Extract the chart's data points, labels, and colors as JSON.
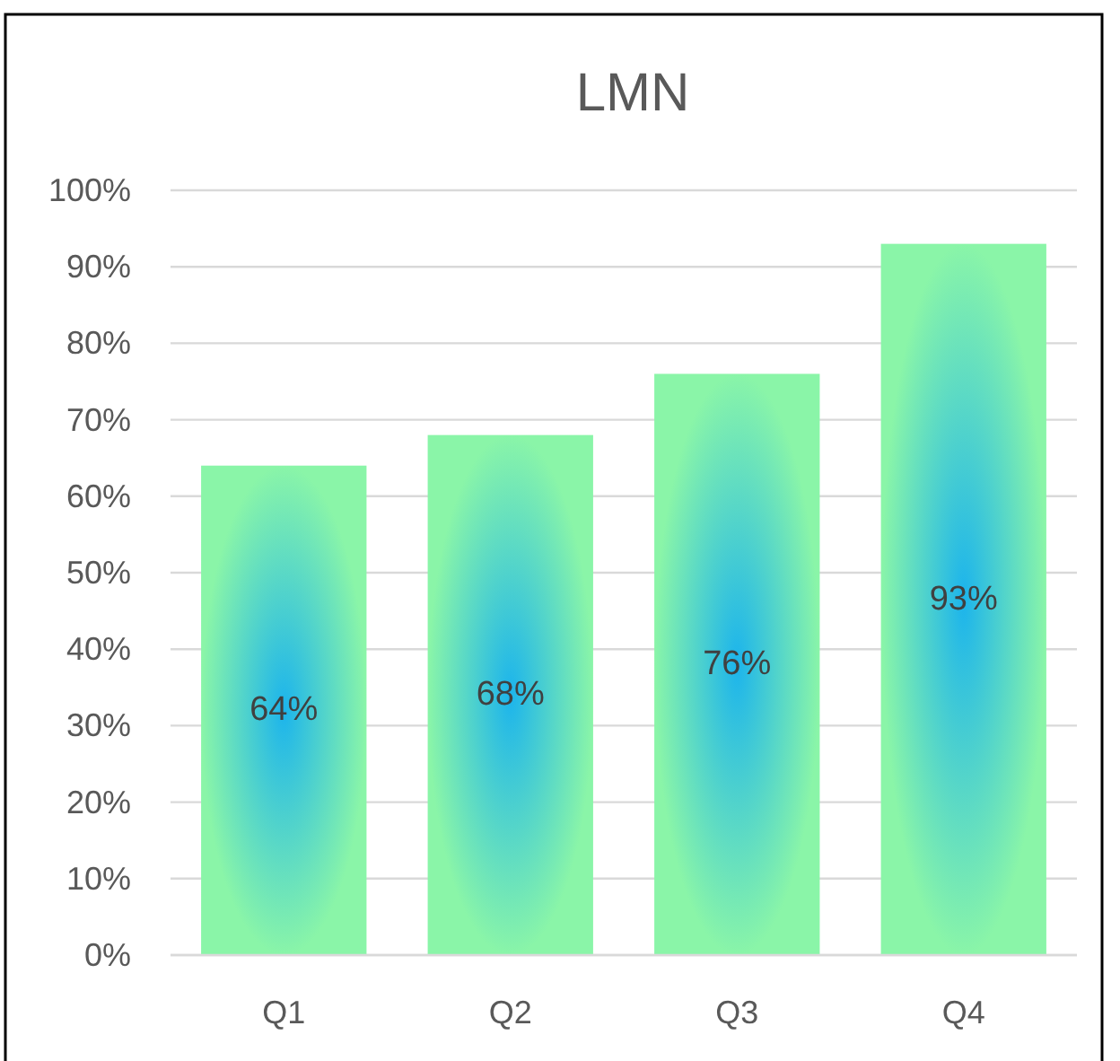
{
  "chart_data": {
    "type": "bar",
    "title": "LMN",
    "categories": [
      "Q1",
      "Q2",
      "Q3",
      "Q4"
    ],
    "values": [
      64,
      68,
      76,
      93
    ],
    "color": "#8af5a8",
    "value_labels": [
      "64%",
      "68%",
      "76%",
      "93%"
    ],
    "ylim": [
      0,
      100
    ],
    "yticks": [
      {
        "value": 0,
        "label": "0%"
      },
      {
        "value": 10,
        "label": "10%"
      },
      {
        "value": 20,
        "label": "20%"
      },
      {
        "value": 30,
        "label": "30%"
      },
      {
        "value": 40,
        "label": "40%"
      },
      {
        "value": 50,
        "label": "50%"
      },
      {
        "value": 60,
        "label": "60%"
      },
      {
        "value": 70,
        "label": "70%"
      },
      {
        "value": 80,
        "label": "80%"
      },
      {
        "value": 90,
        "label": "90%"
      },
      {
        "value": 100,
        "label": "100%"
      }
    ],
    "grid": "y"
  }
}
